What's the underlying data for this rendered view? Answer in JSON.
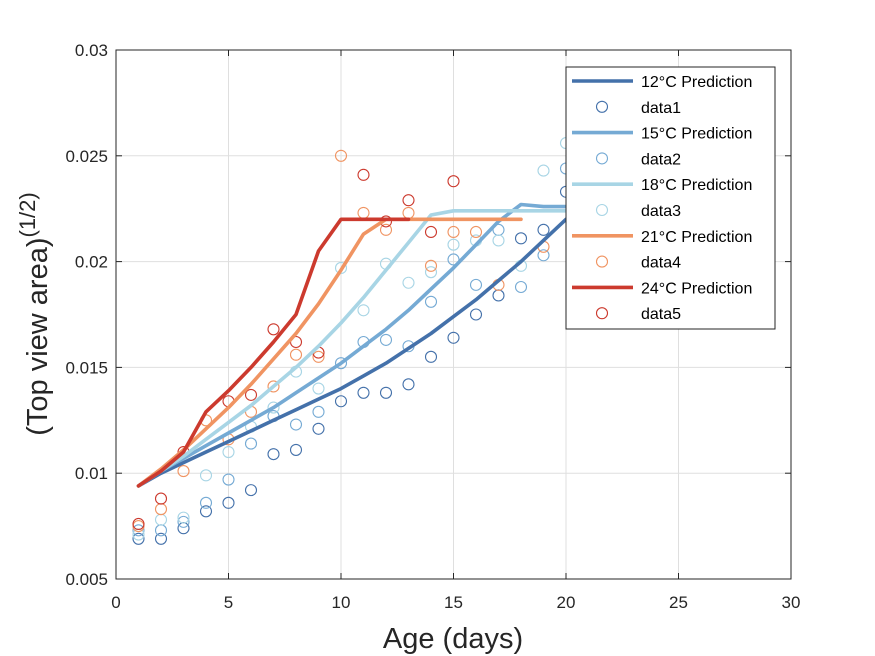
{
  "chart_data": {
    "type": "line",
    "xlabel": "Age (days)",
    "ylabel": "(Top view area)",
    "ylabel_superscript": "(1/2)",
    "xlim": [
      0,
      30
    ],
    "ylim": [
      0.005,
      0.03
    ],
    "xticks": [
      "0",
      "5",
      "10",
      "15",
      "20",
      "25",
      "30"
    ],
    "yticks": [
      "0.005",
      "0.01",
      "0.015",
      "0.02",
      "0.025",
      "0.03"
    ],
    "grid": true,
    "legend_position": "top-right",
    "series": [
      {
        "name": "12°C Prediction",
        "kind": "line",
        "color": "#4471aa",
        "x": [
          1,
          2,
          3,
          4,
          5,
          6,
          7,
          8,
          9,
          10,
          11,
          12,
          13,
          14,
          15,
          16,
          17,
          18,
          19,
          20
        ],
        "y": [
          0.0094,
          0.01,
          0.0105,
          0.011,
          0.0115,
          0.012,
          0.0125,
          0.013,
          0.0135,
          0.014,
          0.0146,
          0.0152,
          0.0159,
          0.0166,
          0.0174,
          0.0182,
          0.0191,
          0.02,
          0.021,
          0.022
        ]
      },
      {
        "name": "data1",
        "kind": "scatter",
        "color": "#4471aa",
        "x": [
          1,
          2,
          3,
          4,
          5,
          6,
          7,
          8,
          9,
          10,
          11,
          12,
          13,
          14,
          15,
          16,
          17,
          18,
          19,
          20
        ],
        "y": [
          0.0069,
          0.0069,
          0.0074,
          0.0082,
          0.0086,
          0.0092,
          0.0109,
          0.0111,
          0.0121,
          0.0134,
          0.0138,
          0.0138,
          0.0142,
          0.0155,
          0.0164,
          0.0175,
          0.0184,
          0.0211,
          0.0215,
          0.0233
        ]
      },
      {
        "name": "15°C Prediction",
        "kind": "line",
        "color": "#75aad4",
        "x": [
          1,
          2,
          3,
          4,
          5,
          6,
          7,
          8,
          9,
          10,
          11,
          12,
          13,
          14,
          15,
          16,
          17,
          18,
          19,
          20
        ],
        "y": [
          0.0094,
          0.0101,
          0.0107,
          0.0113,
          0.0119,
          0.0125,
          0.0131,
          0.0138,
          0.0145,
          0.0152,
          0.016,
          0.0168,
          0.0177,
          0.0187,
          0.0197,
          0.0208,
          0.0219,
          0.0227,
          0.0226,
          0.0226
        ]
      },
      {
        "name": "data2",
        "kind": "scatter",
        "color": "#75aad4",
        "x": [
          1,
          2,
          3,
          4,
          5,
          6,
          7,
          8,
          9,
          10,
          11,
          12,
          13,
          14,
          15,
          16,
          17,
          18,
          19,
          20
        ],
        "y": [
          0.0073,
          0.0073,
          0.0077,
          0.0086,
          0.0097,
          0.0114,
          0.0127,
          0.0123,
          0.0129,
          0.0152,
          0.0162,
          0.0163,
          0.016,
          0.0181,
          0.0201,
          0.0189,
          0.0215,
          0.0188,
          0.0203,
          0.0244
        ]
      },
      {
        "name": "18°C Prediction",
        "kind": "line",
        "color": "#a8d5e5",
        "x": [
          1,
          2,
          3,
          4,
          5,
          6,
          7,
          8,
          9,
          10,
          11,
          12,
          13,
          14,
          15,
          16,
          17,
          18,
          19,
          20
        ],
        "y": [
          0.0094,
          0.0101,
          0.0108,
          0.0116,
          0.0124,
          0.0132,
          0.0141,
          0.015,
          0.016,
          0.0171,
          0.0183,
          0.0196,
          0.0209,
          0.0222,
          0.0224,
          0.0224,
          0.0224,
          0.0224,
          0.0224,
          0.0224
        ]
      },
      {
        "name": "data3",
        "kind": "scatter",
        "color": "#a8d5e5",
        "x": [
          1,
          2,
          3,
          4,
          5,
          6,
          7,
          8,
          9,
          10,
          11,
          12,
          13,
          14,
          15,
          16,
          17,
          18,
          19,
          20
        ],
        "y": [
          0.0071,
          0.0078,
          0.0079,
          0.0099,
          0.011,
          0.0122,
          0.0131,
          0.0148,
          0.014,
          0.0197,
          0.0177,
          0.0199,
          0.019,
          0.0195,
          0.0208,
          0.021,
          0.021,
          0.0198,
          0.0243,
          0.0256
        ]
      },
      {
        "name": "21°C Prediction",
        "kind": "line",
        "color": "#f09462",
        "x": [
          1,
          2,
          3,
          4,
          5,
          6,
          7,
          8,
          9,
          10,
          11,
          12,
          13,
          14,
          15,
          16,
          17,
          18
        ],
        "y": [
          0.0094,
          0.0102,
          0.0111,
          0.0121,
          0.0131,
          0.0142,
          0.0154,
          0.0166,
          0.018,
          0.0196,
          0.0213,
          0.022,
          0.022,
          0.022,
          0.022,
          0.022,
          0.022,
          0.022
        ]
      },
      {
        "name": "data4",
        "kind": "scatter",
        "color": "#f09462",
        "x": [
          1,
          2,
          3,
          4,
          5,
          6,
          7,
          8,
          9,
          10,
          11,
          12,
          13,
          14,
          15,
          16,
          17,
          19
        ],
        "y": [
          0.0075,
          0.0083,
          0.0101,
          0.0125,
          0.0116,
          0.0129,
          0.0141,
          0.0156,
          0.0155,
          0.025,
          0.0223,
          0.0215,
          0.0223,
          0.0198,
          0.0214,
          0.0214,
          0.0189,
          0.0207
        ]
      },
      {
        "name": "24°C Prediction",
        "kind": "line",
        "color": "#cc3a2e",
        "x": [
          1,
          2,
          3,
          4,
          5,
          6,
          7,
          8,
          9,
          10,
          11,
          12,
          13
        ],
        "y": [
          0.0094,
          0.0101,
          0.011,
          0.0129,
          0.0139,
          0.015,
          0.0162,
          0.0175,
          0.0205,
          0.022,
          0.022,
          0.022,
          0.022
        ]
      },
      {
        "name": "data5",
        "kind": "scatter",
        "color": "#cc3a2e",
        "x": [
          1,
          2,
          3,
          5,
          6,
          7,
          8,
          9,
          11,
          12,
          13,
          14,
          15
        ],
        "y": [
          0.0076,
          0.0088,
          0.011,
          0.0134,
          0.0137,
          0.0168,
          0.0162,
          0.0157,
          0.0241,
          0.0219,
          0.0229,
          0.0214,
          0.0238
        ]
      }
    ]
  }
}
